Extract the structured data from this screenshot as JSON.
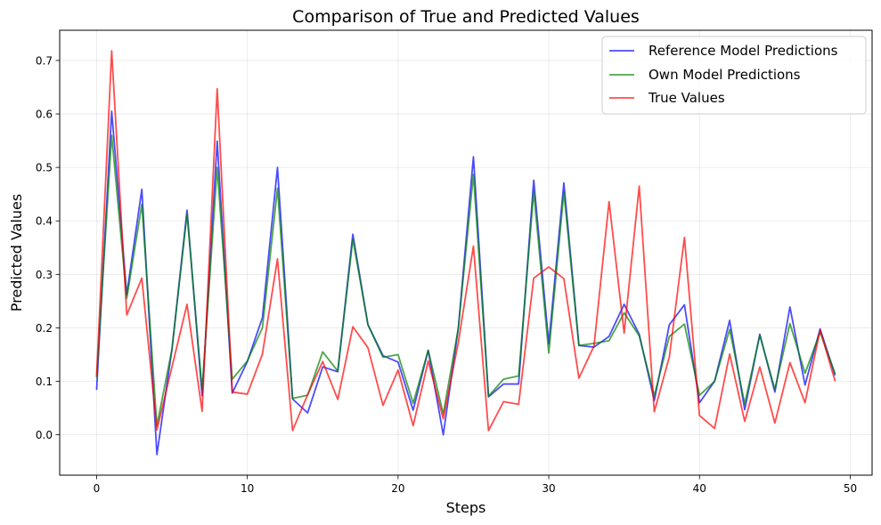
{
  "chart_data": {
    "type": "line",
    "title": "Comparison of True and Predicted Values",
    "xlabel": "Steps",
    "ylabel": "Predicted Values",
    "xlim": [
      -2.45,
      51.45
    ],
    "ylim": [
      -0.0755,
      0.7565
    ],
    "xticks": [
      0,
      10,
      20,
      30,
      40,
      50
    ],
    "yticks": [
      0.0,
      0.1,
      0.2,
      0.3,
      0.4,
      0.5,
      0.6,
      0.7
    ],
    "grid": true,
    "legend_position": "top-right",
    "x": [
      0,
      1,
      2,
      3,
      4,
      5,
      6,
      7,
      8,
      9,
      10,
      11,
      12,
      13,
      14,
      15,
      16,
      17,
      18,
      19,
      20,
      21,
      22,
      23,
      24,
      25,
      26,
      27,
      28,
      29,
      30,
      31,
      32,
      33,
      34,
      35,
      36,
      37,
      38,
      39,
      40,
      41,
      42,
      43,
      44,
      45,
      46,
      47,
      48,
      49
    ],
    "series": [
      {
        "name": "Reference Model Predictions",
        "color": "#0000ff",
        "values": [
          0.084,
          0.605,
          0.262,
          0.459,
          -0.037,
          0.16,
          0.42,
          0.073,
          0.549,
          0.078,
          0.137,
          0.219,
          0.5,
          0.067,
          0.041,
          0.127,
          0.118,
          0.375,
          0.206,
          0.148,
          0.136,
          0.046,
          0.158,
          0.0,
          0.2,
          0.52,
          0.071,
          0.095,
          0.095,
          0.476,
          0.17,
          0.471,
          0.167,
          0.164,
          0.184,
          0.244,
          0.188,
          0.064,
          0.206,
          0.243,
          0.06,
          0.1,
          0.214,
          0.047,
          0.188,
          0.08,
          0.239,
          0.093,
          0.198,
          0.111
        ]
      },
      {
        "name": "Own Model Predictions",
        "color": "#008000",
        "values": [
          0.107,
          0.56,
          0.255,
          0.431,
          0.017,
          0.16,
          0.413,
          0.084,
          0.5,
          0.104,
          0.138,
          0.2,
          0.461,
          0.068,
          0.074,
          0.155,
          0.119,
          0.366,
          0.206,
          0.145,
          0.15,
          0.059,
          0.158,
          0.039,
          0.2,
          0.487,
          0.072,
          0.104,
          0.11,
          0.455,
          0.153,
          0.454,
          0.167,
          0.171,
          0.176,
          0.228,
          0.185,
          0.073,
          0.184,
          0.207,
          0.074,
          0.1,
          0.197,
          0.058,
          0.186,
          0.085,
          0.208,
          0.115,
          0.192,
          0.114
        ]
      },
      {
        "name": "True Values",
        "color": "#ff0000",
        "values": [
          0.11,
          0.718,
          0.224,
          0.293,
          0.009,
          0.127,
          0.244,
          0.044,
          0.647,
          0.08,
          0.076,
          0.151,
          0.329,
          0.008,
          0.075,
          0.137,
          0.066,
          0.202,
          0.163,
          0.055,
          0.121,
          0.017,
          0.138,
          0.03,
          0.173,
          0.353,
          0.008,
          0.062,
          0.057,
          0.293,
          0.314,
          0.292,
          0.106,
          0.166,
          0.436,
          0.19,
          0.465,
          0.043,
          0.146,
          0.369,
          0.036,
          0.012,
          0.151,
          0.025,
          0.127,
          0.022,
          0.135,
          0.06,
          0.196,
          0.1
        ]
      }
    ]
  }
}
